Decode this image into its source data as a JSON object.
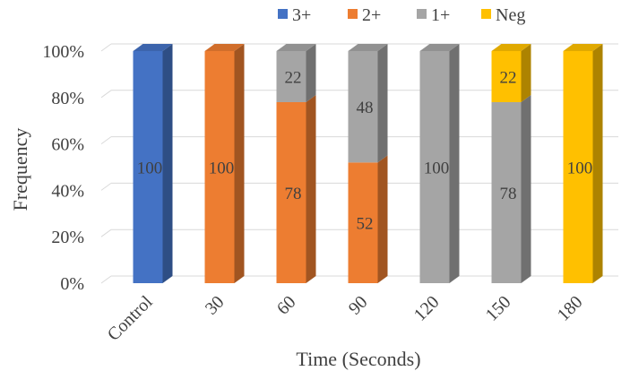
{
  "chart_data": {
    "type": "bar",
    "stacked": true,
    "percent_stacked": true,
    "style": "3d-column",
    "categories": [
      "Control",
      "30",
      "60",
      "90",
      "120",
      "150",
      "180"
    ],
    "series": [
      {
        "name": "3+",
        "color": "#4472C4",
        "values": [
          100,
          0,
          0,
          0,
          0,
          0,
          0
        ]
      },
      {
        "name": "2+",
        "color": "#ED7D31",
        "values": [
          0,
          100,
          78,
          52,
          0,
          0,
          0
        ]
      },
      {
        "name": "1+",
        "color": "#A5A5A5",
        "values": [
          0,
          0,
          22,
          48,
          100,
          78,
          0
        ]
      },
      {
        "name": "Neg",
        "color": "#FFC000",
        "values": [
          0,
          0,
          0,
          0,
          0,
          22,
          100
        ]
      }
    ],
    "xlabel": "Time (Seconds)",
    "ylabel": "Frequency",
    "ylim": [
      0,
      100
    ],
    "yticks": [
      "0%",
      "20%",
      "40%",
      "60%",
      "80%",
      "100%"
    ],
    "grid": true,
    "legend_position": "top",
    "data_labels": true
  }
}
